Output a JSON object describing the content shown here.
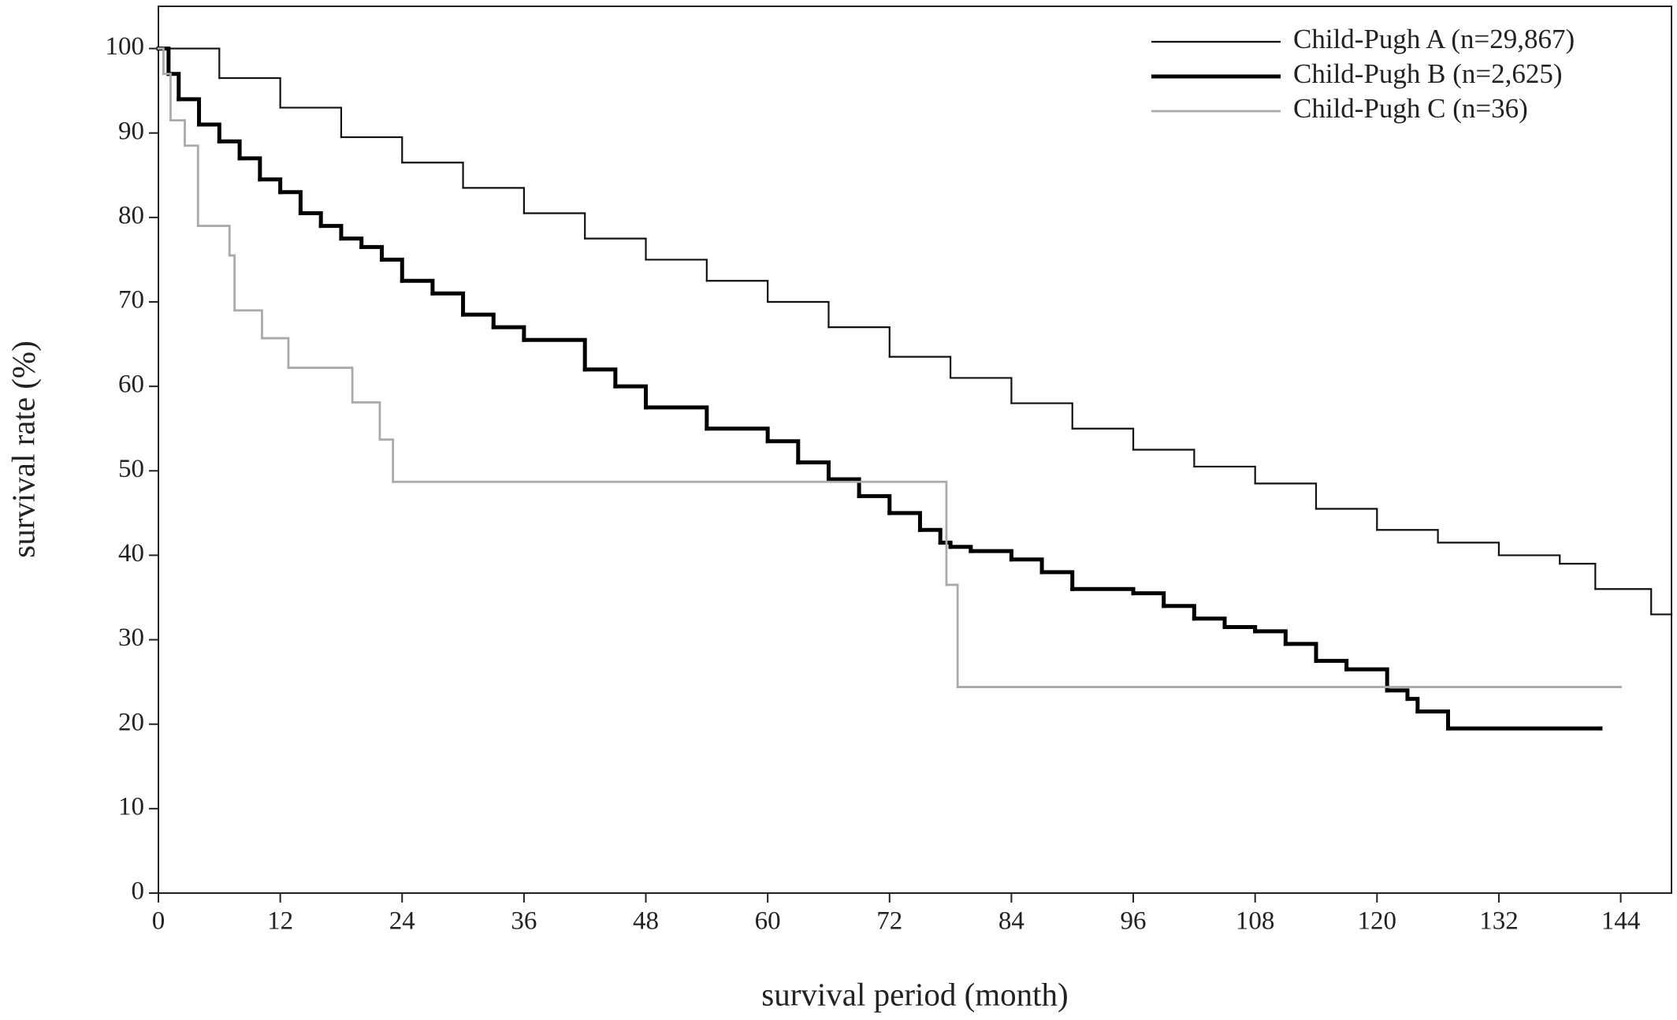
{
  "chart_data": {
    "type": "line",
    "step": true,
    "x_label": "survival period (month)",
    "y_label": "survival rate (%)",
    "xlim": [
      0,
      149
    ],
    "ylim": [
      0,
      105
    ],
    "xticks": [
      0,
      12,
      24,
      36,
      48,
      60,
      72,
      84,
      96,
      108,
      120,
      132,
      144
    ],
    "yticks": [
      0,
      10,
      20,
      30,
      40,
      50,
      60,
      70,
      80,
      90,
      100
    ],
    "legend": "upper right",
    "grid": false,
    "series": [
      {
        "name": "Child-Pugh A (n=29,867)",
        "color": "#111111",
        "linewidth": 2.2,
        "x": [
          0,
          6,
          12,
          18,
          24,
          30,
          36,
          42,
          48,
          54,
          60,
          66,
          72,
          78,
          84,
          90,
          96,
          102,
          108,
          114,
          120,
          126,
          132,
          138,
          141.5,
          147,
          149
        ],
        "values": [
          100,
          96.5,
          93,
          89.5,
          86.5,
          83.5,
          80.5,
          77.5,
          75,
          72.5,
          70,
          67,
          63.5,
          61,
          58,
          55,
          52.5,
          50.5,
          48.5,
          45.5,
          43,
          41.5,
          40,
          39,
          36,
          33,
          33
        ]
      },
      {
        "name": "Child-Pugh B (n=2,625)",
        "color": "#000000",
        "linewidth": 5,
        "x": [
          0,
          1,
          2,
          4,
          6,
          8,
          10,
          12,
          14,
          16,
          18,
          20,
          22,
          24,
          27,
          30,
          33,
          36,
          42,
          45,
          48,
          54,
          60,
          63,
          66,
          69,
          72,
          75,
          77,
          78,
          80,
          84,
          87,
          90,
          96,
          99,
          102,
          105,
          108,
          111,
          114,
          117,
          121,
          123,
          124,
          127,
          142
        ],
        "values": [
          100,
          97,
          94,
          91,
          89,
          87,
          84.5,
          83,
          80.5,
          79,
          77.5,
          76.5,
          75,
          72.5,
          71,
          68.5,
          67,
          65.5,
          62,
          60,
          57.5,
          55,
          53.5,
          51,
          49,
          47,
          45,
          43,
          41.5,
          41,
          40.5,
          39.5,
          38,
          36,
          35.5,
          34,
          32.5,
          31.5,
          31,
          29.5,
          27.5,
          26.5,
          24,
          23,
          21.5,
          19.5,
          19.5
        ]
      },
      {
        "name": "Child-Pugh C (n=36)",
        "color": "#aaaaaa",
        "linewidth": 2.8,
        "x": [
          0,
          0.5,
          1.2,
          2.6,
          3.9,
          7.0,
          7.5,
          10.2,
          12.8,
          19.1,
          21.8,
          23.1,
          77.6,
          78.7,
          144
        ],
        "values": [
          100,
          97,
          91.5,
          88.5,
          79,
          75.5,
          69,
          65.7,
          62.2,
          58.1,
          53.7,
          48.7,
          36.5,
          24.4,
          24.4
        ]
      }
    ]
  }
}
